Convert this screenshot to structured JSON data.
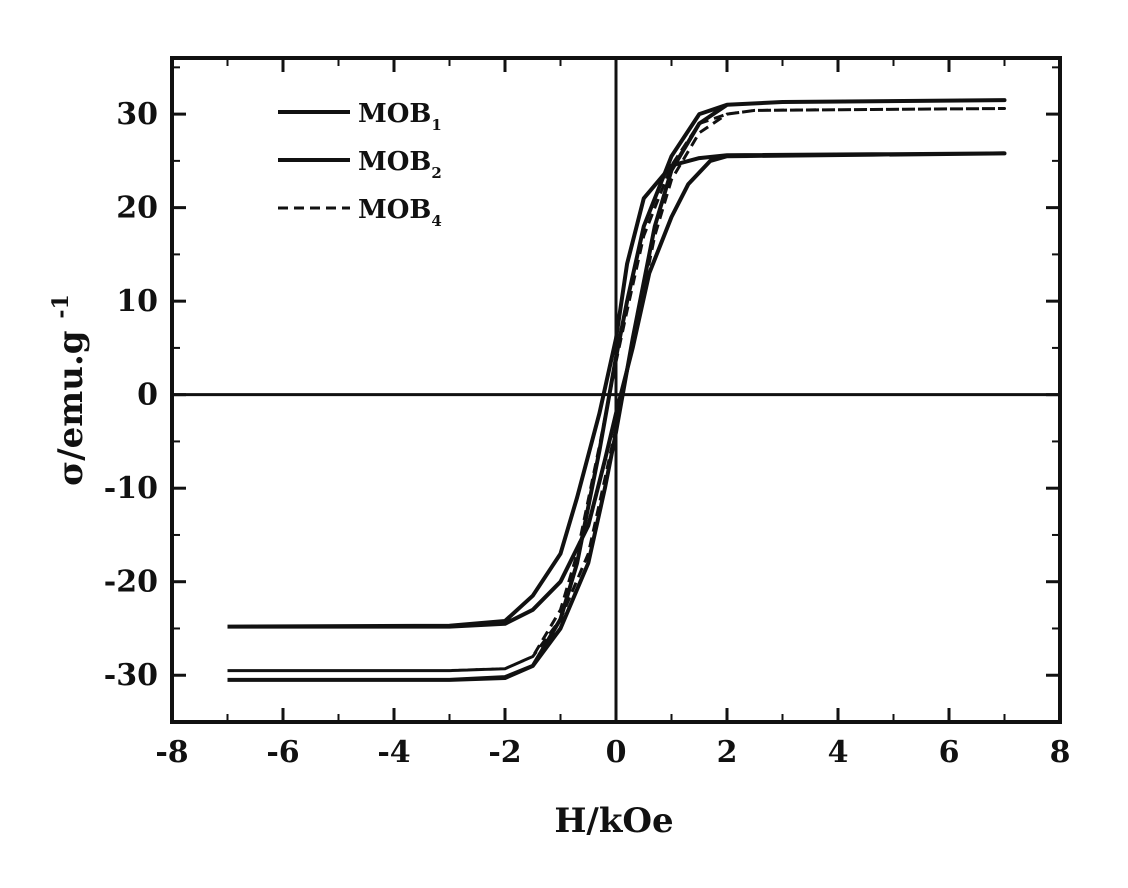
{
  "chart_data": {
    "type": "line",
    "title": "",
    "xlabel": "H/kOe",
    "ylabel_main": "σ/emu.g",
    "ylabel_sup": "-1",
    "xlim": [
      -8,
      8
    ],
    "ylim": [
      -35,
      36
    ],
    "x_ticks": [
      "-8",
      "-6",
      "-4",
      "-2",
      "0",
      "2",
      "4",
      "6",
      "8"
    ],
    "y_ticks": [
      "-30",
      "-20",
      "-10",
      "0",
      "10",
      "20",
      "30"
    ],
    "legend_position": "top-left",
    "series": [
      {
        "label_main": "MOB",
        "label_sub": "1",
        "style": "solid",
        "x": [
          -7.0,
          -3.0,
          -2.0,
          -1.5,
          -1.0,
          -0.5,
          -0.2,
          0.0,
          0.3,
          0.7,
          1.0,
          1.5,
          2.0,
          3.0,
          7.0,
          7.0,
          3.0,
          2.0,
          1.5,
          1.0,
          0.5,
          0.2,
          0.0,
          -0.3,
          -0.7,
          -1.0,
          -1.5,
          -2.0,
          -3.0,
          -7.0
        ],
        "y": [
          -30.5,
          -30.5,
          -30.3,
          -29.0,
          -25.0,
          -18.0,
          -10.0,
          -4.0,
          6.0,
          18.0,
          24.0,
          29.0,
          31.0,
          31.3,
          31.5,
          31.5,
          31.3,
          31.0,
          30.0,
          25.5,
          18.0,
          10.0,
          4.0,
          -6.0,
          -18.0,
          -24.0,
          -29.0,
          -30.2,
          -30.5,
          -30.5
        ]
      },
      {
        "label_main": "MOB",
        "label_sub": "2",
        "style": "solid",
        "x": [
          -7.0,
          -3.0,
          -2.0,
          -1.5,
          -1.0,
          -0.5,
          -0.2,
          0.0,
          0.3,
          0.6,
          1.0,
          1.3,
          1.7,
          2.0,
          7.0,
          7.0,
          2.0,
          1.5,
          1.0,
          0.5,
          0.2,
          0.0,
          -0.3,
          -0.7,
          -1.0,
          -1.5,
          -2.0,
          -3.0,
          -7.0
        ],
        "y": [
          -24.8,
          -24.8,
          -24.5,
          -23.0,
          -20.0,
          -14.0,
          -7.0,
          -2.0,
          5.0,
          13.0,
          19.0,
          22.5,
          25.0,
          25.5,
          25.8,
          25.8,
          25.6,
          25.3,
          24.5,
          21.0,
          14.0,
          6.0,
          -2.0,
          -11.0,
          -17.0,
          -21.5,
          -24.2,
          -24.7,
          -24.8
        ]
      },
      {
        "label_main": "MOB",
        "label_sub": "4",
        "style": "dashed",
        "x": [
          -7.0,
          -3.0,
          -2.0,
          -1.5,
          -1.0,
          -0.5,
          -0.2,
          0.0,
          0.3,
          0.7,
          1.0,
          1.5,
          2.0,
          2.5,
          7.0,
          7.0,
          2.5,
          2.0,
          1.5,
          1.0,
          0.5,
          0.2,
          0.0,
          -0.3,
          -0.7,
          -1.0,
          -1.5,
          -2.0,
          -3.0,
          -7.0
        ],
        "y": [
          -29.5,
          -29.5,
          -29.3,
          -28.0,
          -24.0,
          -17.0,
          -9.0,
          -3.5,
          5.5,
          17.0,
          23.0,
          28.0,
          30.0,
          30.4,
          30.6,
          30.6,
          30.4,
          30.0,
          29.0,
          24.5,
          17.0,
          9.0,
          3.5,
          -5.5,
          -17.0,
          -23.0,
          -28.0,
          -29.3,
          -29.5,
          -29.5
        ]
      }
    ]
  }
}
